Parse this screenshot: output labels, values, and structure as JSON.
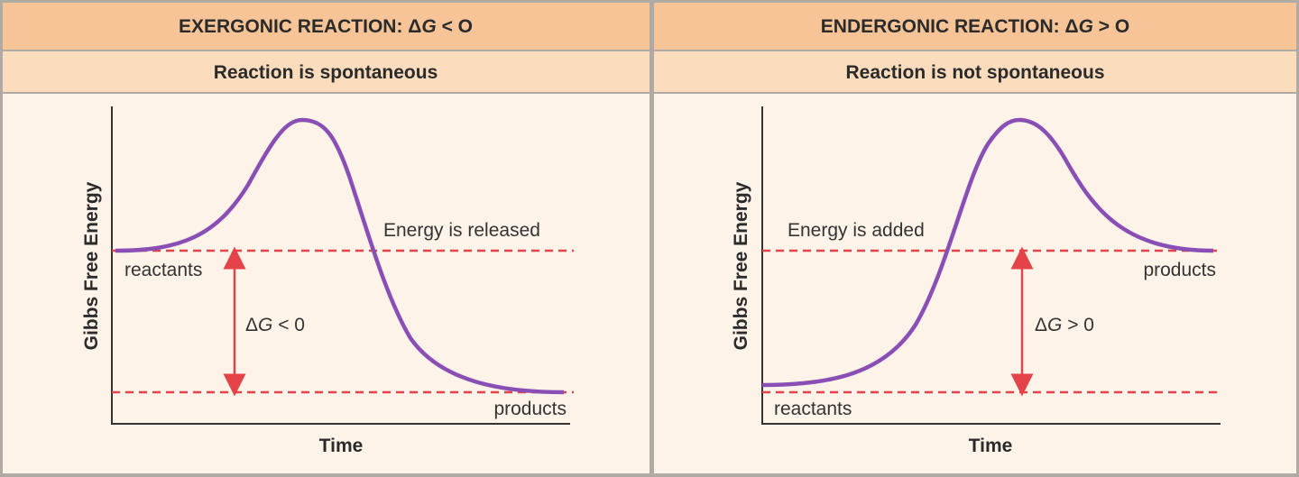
{
  "panels": [
    {
      "header": {
        "pre": "EXERGONIC REACTION: Δ",
        "var": "G",
        "post": " < O"
      },
      "subtitle": "Reaction is spontaneous",
      "y_label": "Gibbs Free Energy",
      "x_label": "Time",
      "energy_note": "Energy is released",
      "upper_label": "reactants",
      "lower_label": "products",
      "delta": {
        "pre": "Δ",
        "var": "G",
        "post": " < 0"
      }
    },
    {
      "header": {
        "pre": "ENDERGONIC REACTION: Δ",
        "var": "G",
        "post": " > O"
      },
      "subtitle": "Reaction is not spontaneous",
      "y_label": "Gibbs Free Energy",
      "x_label": "Time",
      "energy_note": "Energy is added",
      "upper_label": "products",
      "lower_label": "reactants",
      "delta": {
        "pre": "Δ",
        "var": "G",
        "post": " > 0"
      }
    }
  ]
}
